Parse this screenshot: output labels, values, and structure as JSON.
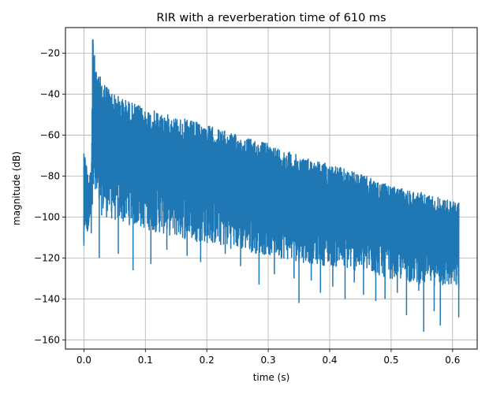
{
  "chart_data": {
    "type": "line",
    "title": "RIR with a reverberation time of 610 ms",
    "xlabel": "time (s)",
    "ylabel": "magnitude (dB)",
    "xlim": [
      -0.03,
      0.64
    ],
    "ylim": [
      -164.5,
      -7.5
    ],
    "xticks": [
      0.0,
      0.1,
      0.2,
      0.3,
      0.4,
      0.5,
      0.6
    ],
    "xtick_labels": [
      "0.0",
      "0.1",
      "0.2",
      "0.3",
      "0.4",
      "0.5",
      "0.6"
    ],
    "yticks": [
      -160,
      -140,
      -120,
      -100,
      -80,
      -60,
      -40,
      -20
    ],
    "ytick_labels": [
      "−160",
      "−140",
      "−120",
      "−100",
      "−80",
      "−60",
      "−40",
      "−20"
    ],
    "grid": true,
    "series": [
      {
        "color": "#1f77b4",
        "duration_s": 0.61,
        "peak": {
          "x": 0.0145,
          "y": -13.5
        },
        "x": [
          0.0,
          0.003,
          0.006,
          0.009,
          0.012,
          0.015,
          0.02,
          0.05,
          0.1,
          0.15,
          0.2,
          0.25,
          0.3,
          0.35,
          0.4,
          0.45,
          0.5,
          0.55,
          0.61
        ],
        "upper": [
          -69,
          -70,
          -78,
          -80,
          -75,
          -13.5,
          -29,
          -40,
          -47,
          -51,
          -55,
          -60,
          -64,
          -70,
          -74,
          -79,
          -85,
          -88,
          -93
        ],
        "lower": [
          -112,
          -108,
          -113,
          -104,
          -101,
          -90,
          -98,
          -102,
          -106,
          -110,
          -113,
          -116,
          -119,
          -122,
          -124,
          -127,
          -130,
          -133,
          -135
        ],
        "dips": [
          {
            "x": 0.0,
            "y": -114
          },
          {
            "x": 0.012,
            "y": -108
          },
          {
            "x": 0.025,
            "y": -120
          },
          {
            "x": 0.056,
            "y": -118
          },
          {
            "x": 0.08,
            "y": -126
          },
          {
            "x": 0.109,
            "y": -123
          },
          {
            "x": 0.135,
            "y": -116
          },
          {
            "x": 0.168,
            "y": -119
          },
          {
            "x": 0.19,
            "y": -122
          },
          {
            "x": 0.23,
            "y": -118
          },
          {
            "x": 0.255,
            "y": -124
          },
          {
            "x": 0.285,
            "y": -133
          },
          {
            "x": 0.31,
            "y": -128
          },
          {
            "x": 0.342,
            "y": -130
          },
          {
            "x": 0.35,
            "y": -142
          },
          {
            "x": 0.37,
            "y": -131
          },
          {
            "x": 0.385,
            "y": -137
          },
          {
            "x": 0.405,
            "y": -134
          },
          {
            "x": 0.425,
            "y": -140
          },
          {
            "x": 0.44,
            "y": -132
          },
          {
            "x": 0.455,
            "y": -138
          },
          {
            "x": 0.475,
            "y": -141
          },
          {
            "x": 0.49,
            "y": -140
          },
          {
            "x": 0.51,
            "y": -137
          },
          {
            "x": 0.525,
            "y": -148
          },
          {
            "x": 0.545,
            "y": -136
          },
          {
            "x": 0.553,
            "y": -156
          },
          {
            "x": 0.57,
            "y": -146
          },
          {
            "x": 0.58,
            "y": -153
          },
          {
            "x": 0.61,
            "y": -149
          }
        ]
      }
    ]
  }
}
